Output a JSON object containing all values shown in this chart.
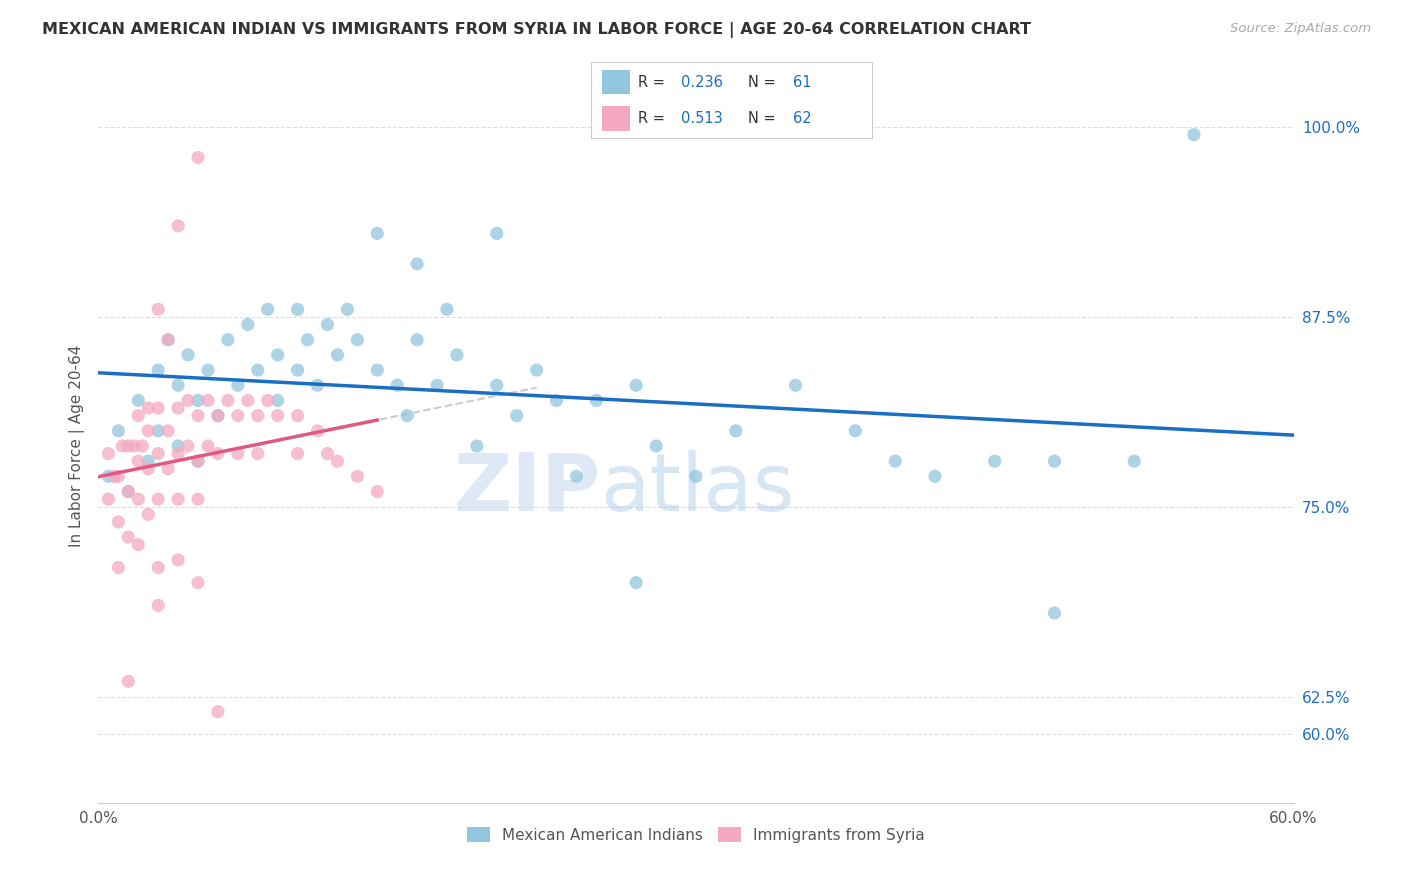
{
  "title": "MEXICAN AMERICAN INDIAN VS IMMIGRANTS FROM SYRIA IN LABOR FORCE | AGE 20-64 CORRELATION CHART",
  "source": "Source: ZipAtlas.com",
  "ylabel": "In Labor Force | Age 20-64",
  "xlim": [
    0.0,
    0.6
  ],
  "ylim": [
    0.555,
    1.025
  ],
  "xticks": [
    0.0,
    0.1,
    0.2,
    0.3,
    0.4,
    0.5,
    0.6
  ],
  "xticklabels": [
    "0.0%",
    "",
    "",
    "",
    "",
    "",
    "60.0%"
  ],
  "yticks_right": [
    0.6,
    0.625,
    0.75,
    0.875,
    1.0
  ],
  "ytick_labels_right": [
    "60.0%",
    "62.5%",
    "75.0%",
    "87.5%",
    "100.0%"
  ],
  "blue_color": "#92c5de",
  "pink_color": "#f4a9c0",
  "trend_blue": "#1a6fc4",
  "trend_pink": "#e05a80",
  "trend_gray": "#cccccc",
  "legend_r_blue": "0.236",
  "legend_n_blue": "61",
  "legend_r_pink": "0.513",
  "legend_n_pink": "62",
  "legend_label_blue": "Mexican American Indians",
  "legend_label_pink": "Immigrants from Syria",
  "watermark_zip": "ZIP",
  "watermark_atlas": "atlas",
  "blue_x": [
    0.005,
    0.01,
    0.015,
    0.02,
    0.025,
    0.03,
    0.03,
    0.035,
    0.04,
    0.04,
    0.045,
    0.05,
    0.05,
    0.055,
    0.06,
    0.065,
    0.07,
    0.075,
    0.08,
    0.085,
    0.09,
    0.09,
    0.1,
    0.1,
    0.105,
    0.11,
    0.115,
    0.12,
    0.125,
    0.13,
    0.14,
    0.15,
    0.155,
    0.16,
    0.17,
    0.175,
    0.18,
    0.19,
    0.2,
    0.21,
    0.22,
    0.23,
    0.24,
    0.25,
    0.27,
    0.28,
    0.3,
    0.32,
    0.35,
    0.38,
    0.4,
    0.42,
    0.45,
    0.48,
    0.52,
    0.14,
    0.16,
    0.2,
    0.27,
    0.48,
    0.55
  ],
  "blue_y": [
    0.77,
    0.8,
    0.76,
    0.82,
    0.78,
    0.84,
    0.8,
    0.86,
    0.83,
    0.79,
    0.85,
    0.82,
    0.78,
    0.84,
    0.81,
    0.86,
    0.83,
    0.87,
    0.84,
    0.88,
    0.85,
    0.82,
    0.88,
    0.84,
    0.86,
    0.83,
    0.87,
    0.85,
    0.88,
    0.86,
    0.84,
    0.83,
    0.81,
    0.86,
    0.83,
    0.88,
    0.85,
    0.79,
    0.83,
    0.81,
    0.84,
    0.82,
    0.77,
    0.82,
    0.83,
    0.79,
    0.77,
    0.8,
    0.83,
    0.8,
    0.78,
    0.77,
    0.78,
    0.78,
    0.78,
    0.93,
    0.91,
    0.93,
    0.7,
    0.68,
    0.995
  ],
  "pink_x": [
    0.005,
    0.005,
    0.008,
    0.01,
    0.01,
    0.01,
    0.012,
    0.015,
    0.015,
    0.015,
    0.018,
    0.02,
    0.02,
    0.02,
    0.02,
    0.022,
    0.025,
    0.025,
    0.025,
    0.03,
    0.03,
    0.03,
    0.03,
    0.03,
    0.035,
    0.035,
    0.04,
    0.04,
    0.04,
    0.04,
    0.045,
    0.045,
    0.05,
    0.05,
    0.05,
    0.055,
    0.055,
    0.06,
    0.06,
    0.065,
    0.07,
    0.07,
    0.075,
    0.08,
    0.08,
    0.085,
    0.09,
    0.1,
    0.1,
    0.11,
    0.115,
    0.12,
    0.13,
    0.14,
    0.015,
    0.025,
    0.03,
    0.035,
    0.04,
    0.05,
    0.05,
    0.06
  ],
  "pink_y": [
    0.785,
    0.755,
    0.77,
    0.77,
    0.74,
    0.71,
    0.79,
    0.79,
    0.76,
    0.73,
    0.79,
    0.81,
    0.78,
    0.755,
    0.725,
    0.79,
    0.8,
    0.775,
    0.745,
    0.815,
    0.785,
    0.755,
    0.71,
    0.685,
    0.8,
    0.775,
    0.815,
    0.785,
    0.755,
    0.715,
    0.82,
    0.79,
    0.81,
    0.78,
    0.755,
    0.82,
    0.79,
    0.81,
    0.785,
    0.82,
    0.81,
    0.785,
    0.82,
    0.81,
    0.785,
    0.82,
    0.81,
    0.81,
    0.785,
    0.8,
    0.785,
    0.78,
    0.77,
    0.76,
    0.635,
    0.815,
    0.88,
    0.86,
    0.935,
    0.98,
    0.7,
    0.615
  ]
}
